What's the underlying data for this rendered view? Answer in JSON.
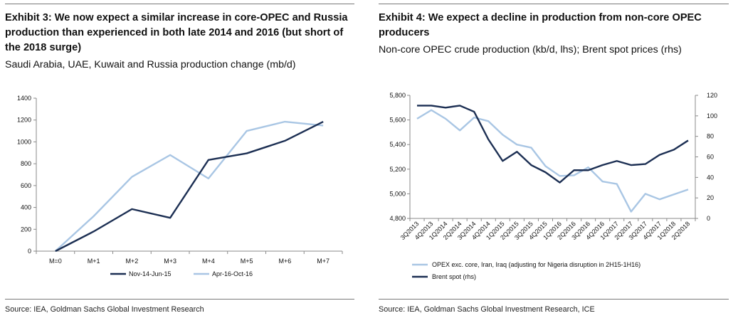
{
  "left": {
    "title": "Exhibit 3: We now expect a similar increase in core-OPEC and Russia production than experienced in both late 2014 and 2016 (but short of the 2018 surge)",
    "subtitle": "Saudi Arabia, UAE, Kuwait and Russia production change (mb/d)",
    "source": "Source: IEA, Goldman Sachs Global Investment Research"
  },
  "right": {
    "title": "Exhibit 4: We expect a decline in production from non-core OPEC producers",
    "subtitle": "Non-core OPEC crude production (kb/d, lhs); Brent spot prices (rhs)",
    "source": "Source: IEA, Goldman Sachs Global Investment Research, ICE"
  },
  "colors": {
    "dark": "#1c2f53",
    "light": "#a9c6e4",
    "axis": "#8a8a8a"
  },
  "chart_data": [
    {
      "type": "line",
      "categories": [
        "M=0",
        "M+1",
        "M+2",
        "M+3",
        "M+4",
        "M+5",
        "M+6",
        "M+7"
      ],
      "yticks": [
        "0",
        "200",
        "400",
        "600",
        "800",
        "1000",
        "1200",
        "1400"
      ],
      "ylim": [
        0,
        1400
      ],
      "legend_position": "bottom",
      "series": [
        {
          "name": "Nov-14-Jun-15",
          "color": "#1c2f53",
          "values": [
            0,
            180,
            385,
            305,
            835,
            895,
            1010,
            1185
          ]
        },
        {
          "name": "Apr-16-Oct-16",
          "color": "#a9c6e4",
          "values": [
            0,
            320,
            680,
            880,
            665,
            1100,
            1185,
            1150
          ]
        }
      ]
    },
    {
      "type": "line",
      "categories": [
        "3Q2013",
        "4Q2013",
        "1Q2014",
        "2Q2014",
        "3Q2014",
        "4Q2014",
        "1Q2015",
        "2Q2015",
        "3Q2015",
        "4Q2015",
        "1Q2016",
        "2Q2016",
        "3Q2016",
        "4Q2016",
        "1Q2017",
        "2Q2017",
        "3Q2017",
        "4Q2017",
        "1Q2018",
        "2Q2018"
      ],
      "y_left_ticks": [
        "4,800",
        "5,000",
        "5,200",
        "5,400",
        "5,600",
        "5,800"
      ],
      "y_right_ticks": [
        "0",
        "20",
        "40",
        "60",
        "80",
        "100",
        "120"
      ],
      "ylim_left": [
        4800,
        5800
      ],
      "ylim_right": [
        0,
        120
      ],
      "legend_position": "bottom",
      "series": [
        {
          "name": "OPEX exc. core, Iran, Iraq (adjusting for Nigeria disruption in 2H15-1H16)",
          "axis": "left",
          "color": "#a9c6e4",
          "values": [
            5610,
            5680,
            5610,
            5515,
            5620,
            5590,
            5480,
            5400,
            5375,
            5225,
            5145,
            5150,
            5215,
            5100,
            5080,
            4855,
            5000,
            4955,
            4995,
            5035
          ]
        },
        {
          "name": "Brent spot (rhs)",
          "axis": "right",
          "color": "#1c2f53",
          "values": [
            110,
            110,
            108,
            110,
            104,
            77,
            56,
            65,
            52,
            45,
            35,
            47,
            47,
            52,
            56,
            52,
            53,
            62,
            67,
            76
          ]
        }
      ]
    }
  ]
}
